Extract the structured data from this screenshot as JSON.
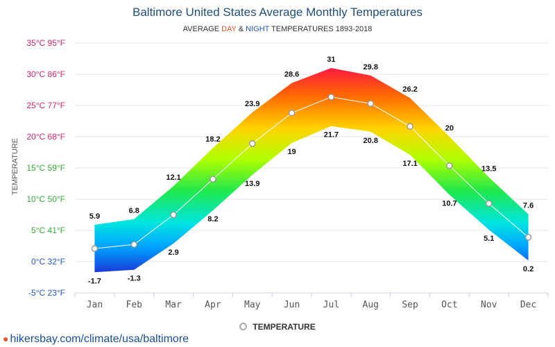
{
  "chart_data": {
    "type": "area",
    "title": "Baltimore United States Average Monthly Temperatures",
    "subtitle": {
      "prefix": "AVERAGE ",
      "day": "DAY",
      "mid": " & ",
      "night": "NIGHT",
      "suffix": " TEMPERATURES 1893-2018"
    },
    "ylabel": "TEMPERATURE",
    "categories": [
      "Jan",
      "Feb",
      "Mar",
      "Apr",
      "May",
      "Jun",
      "Jul",
      "Aug",
      "Sep",
      "Oct",
      "Nov",
      "Dec"
    ],
    "y_ticks": [
      {
        "value": -5,
        "label": "-5°C 23°F",
        "color": "#2255cc"
      },
      {
        "value": 0,
        "label": "0°C 32°F",
        "color": "#2255cc"
      },
      {
        "value": 5,
        "label": "5°C 41°F",
        "color": "#33aa33"
      },
      {
        "value": 10,
        "label": "10°C 50°F",
        "color": "#33aa33"
      },
      {
        "value": 15,
        "label": "15°C 59°F",
        "color": "#33aa33"
      },
      {
        "value": 20,
        "label": "20°C 68°F",
        "color": "#d6246e"
      },
      {
        "value": 25,
        "label": "25°C 77°F",
        "color": "#d6246e"
      },
      {
        "value": 30,
        "label": "30°C 86°F",
        "color": "#d6246e"
      },
      {
        "value": 35,
        "label": "35°C 95°F",
        "color": "#d6246e"
      }
    ],
    "ylim": [
      -5,
      35
    ],
    "grid": true,
    "series": [
      {
        "role": "day",
        "values": [
          5.9,
          6.8,
          12.1,
          18.2,
          23.9,
          28.6,
          31,
          29.8,
          26.2,
          20,
          13.5,
          7.6
        ]
      },
      {
        "role": "night",
        "values": [
          -1.7,
          -1.3,
          2.9,
          8.2,
          13.9,
          19,
          21.7,
          20.8,
          17.1,
          10.7,
          5.1,
          0.2
        ]
      },
      {
        "name": "TEMPERATURE",
        "values": [
          2.1,
          2.75,
          7.5,
          13.2,
          18.9,
          23.8,
          26.35,
          25.3,
          21.65,
          15.35,
          9.3,
          3.9
        ]
      }
    ],
    "legend": {
      "label": "TEMPERATURE",
      "position": "bottom-center"
    },
    "colors": {
      "day": "#e8542c",
      "night": "#2255cc",
      "title": "#1f4e79",
      "mean_marker": "#aaaaaa"
    }
  },
  "footer": {
    "link": "hikersbay.com/climate/usa/baltimore",
    "icon": "map-pin-icon"
  }
}
